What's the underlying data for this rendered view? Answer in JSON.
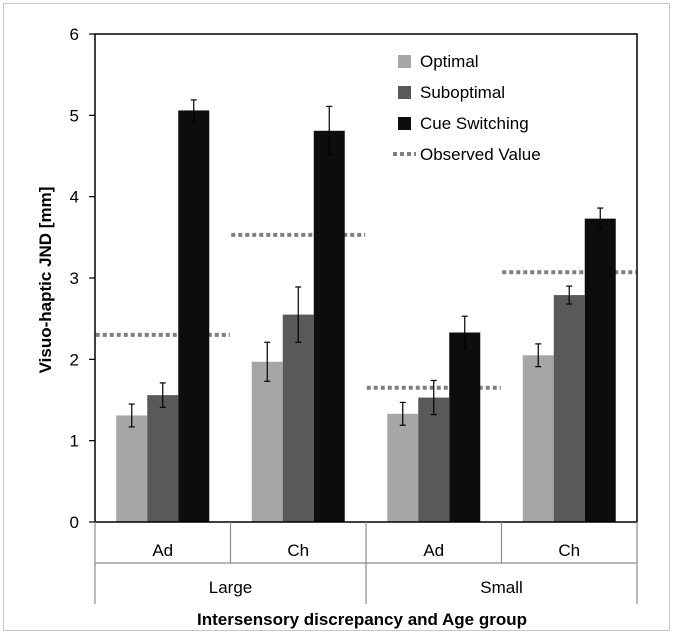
{
  "chart_data": {
    "type": "bar",
    "ylabel": "Visuo-haptic JND [mm]",
    "xlabel": "Intersensory discrepancy and Age group",
    "ylim": [
      0,
      6
    ],
    "yticks": [
      0,
      1,
      2,
      3,
      4,
      5,
      6
    ],
    "groups": [
      {
        "label": "Large",
        "categories": [
          "Ad",
          "Ch"
        ]
      },
      {
        "label": "Small",
        "categories": [
          "Ad",
          "Ch"
        ]
      }
    ],
    "categories": [
      "Ad",
      "Ch",
      "Ad",
      "Ch"
    ],
    "series": [
      {
        "name": "Optimal",
        "color": "#a6a6a6",
        "values": [
          1.31,
          1.97,
          1.33,
          2.05
        ],
        "errors": [
          0.14,
          0.24,
          0.14,
          0.14
        ]
      },
      {
        "name": "Suboptimal",
        "color": "#595959",
        "values": [
          1.56,
          2.55,
          1.53,
          2.79
        ],
        "errors": [
          0.15,
          0.34,
          0.21,
          0.11
        ]
      },
      {
        "name": "Cue Switching",
        "color": "#0d0d0d",
        "values": [
          5.06,
          4.81,
          2.33,
          3.73
        ],
        "errors": [
          0.13,
          0.3,
          0.2,
          0.13
        ]
      }
    ],
    "observed": {
      "name": "Observed Value",
      "color": "#7f7f7f",
      "values": [
        2.3,
        3.53,
        1.65,
        3.07
      ]
    },
    "legend": "top-right",
    "grid": false
  }
}
